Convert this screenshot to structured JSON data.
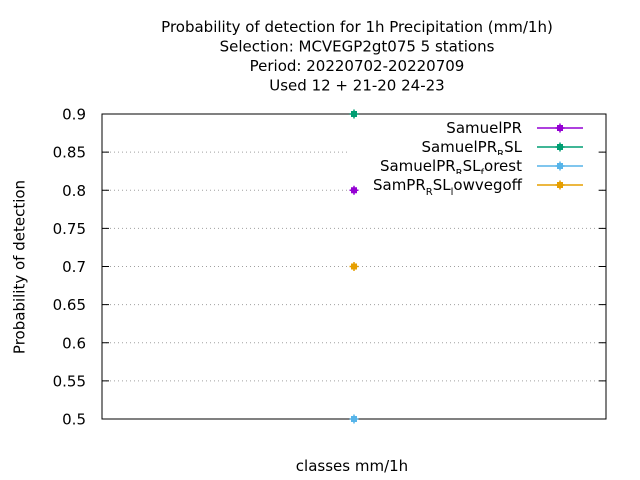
{
  "chart_data": {
    "type": "scatter",
    "title_lines": [
      "Probability of detection  for 1h Precipitation (mm/1h)",
      "Selection: MCVEGP2gt075      5 stations",
      "Period: 20220702-20220709",
      "Used  12 + 21-20 24-23"
    ],
    "xlabel": "classes mm/1h",
    "ylabel": "Probability of detection",
    "ylim": [
      0.5,
      0.9
    ],
    "yticks": [
      "0.5",
      "0.55",
      "0.6",
      "0.65",
      "0.7",
      "0.75",
      "0.8",
      "0.85",
      "0.9"
    ],
    "grid": true,
    "legend_position": "top-right",
    "series": [
      {
        "label_main": "SamuelPR",
        "label_sub": "",
        "label_tail": "",
        "label_sub2": "",
        "label_tail2": "",
        "color": "#9400d3",
        "points": [
          {
            "x": 0,
            "y": 0.8
          }
        ]
      },
      {
        "label_main": "SamuelPR",
        "label_sub": "R",
        "label_tail": "SL",
        "label_sub2": "",
        "label_tail2": "",
        "color": "#009e73",
        "points": [
          {
            "x": 0,
            "y": 0.9
          }
        ]
      },
      {
        "label_main": "SamuelPR",
        "label_sub": "R",
        "label_tail": "SL",
        "label_sub2": "f",
        "label_tail2": "orest",
        "color": "#56b4e9",
        "points": [
          {
            "x": 0,
            "y": 0.5
          }
        ]
      },
      {
        "label_main": "SamPR",
        "label_sub": "R",
        "label_tail": "SL",
        "label_sub2": "l",
        "label_tail2": "owvegoff",
        "color": "#e69f00",
        "points": [
          {
            "x": 0,
            "y": 0.7
          }
        ]
      }
    ]
  }
}
